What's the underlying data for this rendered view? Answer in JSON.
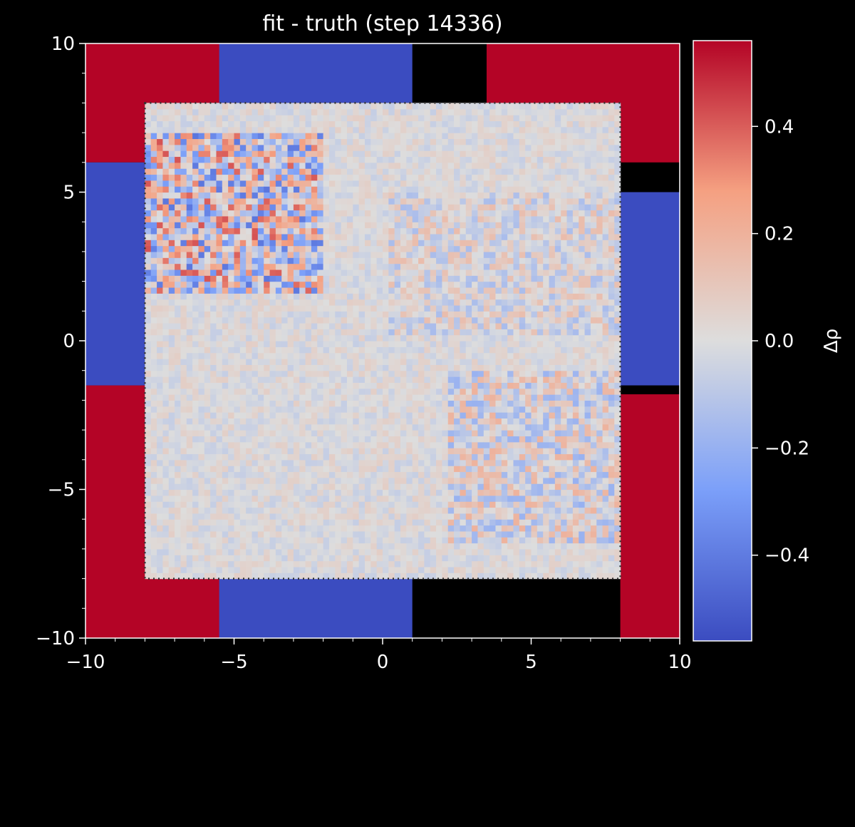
{
  "chart_data": {
    "type": "heatmap",
    "title": "fit - truth (step 14336)",
    "xlabel": "",
    "ylabel": "",
    "xlim": [
      -10,
      10
    ],
    "ylim": [
      -10,
      10
    ],
    "x_ticks": [
      -10,
      -5,
      0,
      5,
      10
    ],
    "y_ticks": [
      -10,
      -5,
      0,
      5,
      10
    ],
    "x_tick_labels": [
      "−10",
      "−5",
      "0",
      "5",
      "10"
    ],
    "y_tick_labels": [
      "−10",
      "−5",
      "0",
      "5",
      "10"
    ],
    "colorbar": {
      "label": "Δρ",
      "colormap": "coolwarm",
      "range": [
        -0.56,
        0.56
      ],
      "ticks": [
        -0.4,
        -0.2,
        0.0,
        0.2,
        0.4
      ],
      "tick_labels": [
        "−0.4",
        "−0.2",
        "0.0",
        "0.2",
        "0.4"
      ]
    },
    "dotted_box": {
      "x": [
        -8,
        8
      ],
      "y": [
        -8,
        8
      ]
    },
    "colors": {
      "background": "#000000",
      "foreground": "#ffffff",
      "cmap_low": "#3b4cc0",
      "cmap_mid": "#dddddd",
      "cmap_high": "#b40426"
    },
    "regions": [
      {
        "name": "corner-top-left",
        "x": [
          -10,
          -5
        ],
        "y": [
          6,
          10
        ],
        "value": 0.56
      },
      {
        "name": "corner-top-right",
        "x": [
          3.5,
          10
        ],
        "y": [
          6,
          10
        ],
        "value": 0.56
      },
      {
        "name": "corner-bottom-left",
        "x": [
          -10,
          -5
        ],
        "y": [
          -10,
          -1.5
        ],
        "value": 0.56
      },
      {
        "name": "corner-bottom-right",
        "x": [
          8,
          10
        ],
        "y": [
          -10,
          -1.8
        ],
        "value": 0.56
      },
      {
        "name": "edge-left",
        "x": [
          -10,
          -8
        ],
        "y": [
          -1.5,
          6
        ],
        "value": -0.56
      },
      {
        "name": "edge-right",
        "x": [
          8,
          10
        ],
        "y": [
          -1.5,
          5
        ],
        "value": -0.56
      },
      {
        "name": "edge-top",
        "x": [
          -5.5,
          1
        ],
        "y": [
          8,
          10
        ],
        "value": -0.56
      },
      {
        "name": "edge-bottom",
        "x": [
          -5.5,
          1
        ],
        "y": [
          -10,
          -8
        ],
        "value": -0.56
      },
      {
        "name": "interior",
        "x": [
          -8,
          8
        ],
        "y": [
          -8,
          8
        ],
        "value": 0.0
      }
    ]
  }
}
